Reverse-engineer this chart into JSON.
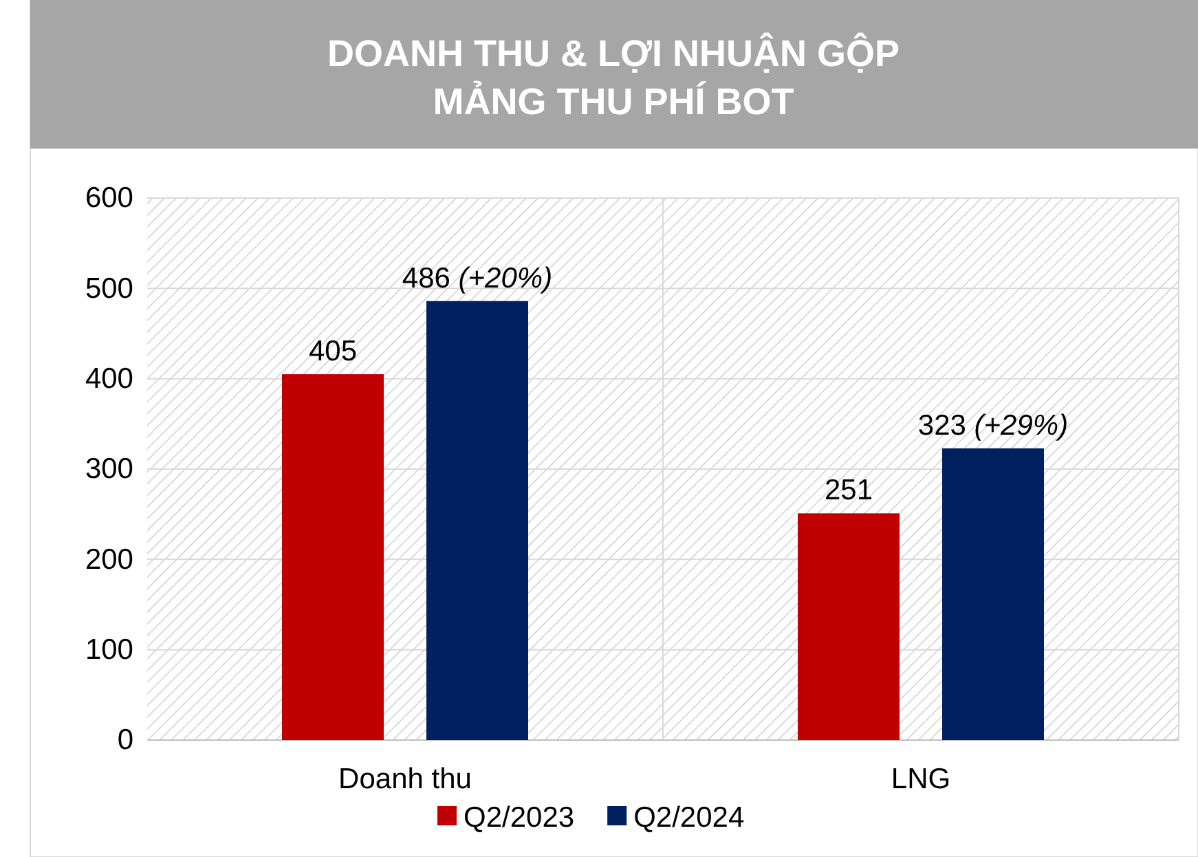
{
  "chart_data": {
    "type": "bar",
    "title": "DOANH THU & LỢI NHUẬN GỘP\nMẢNG THU PHÍ BOT",
    "categories": [
      "Doanh thu",
      "LNG"
    ],
    "series": [
      {
        "name": "Q2/2023",
        "color": "#c00000",
        "values": [
          405,
          251
        ],
        "value_labels": [
          "405",
          "251"
        ]
      },
      {
        "name": "Q2/2024",
        "color": "#002060",
        "values": [
          486,
          323
        ],
        "value_labels": [
          "486 (+20%)",
          "323 (+29%)"
        ]
      }
    ],
    "ylim": [
      0,
      600
    ],
    "yticks": [
      0,
      100,
      200,
      300,
      400,
      500,
      600
    ],
    "grid": true,
    "legend": "bottom"
  }
}
